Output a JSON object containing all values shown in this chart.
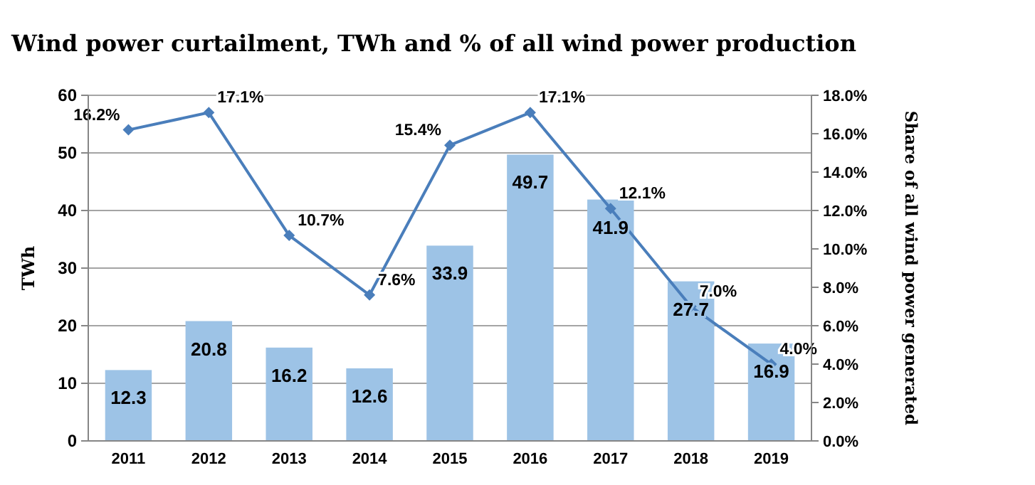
{
  "chart_data": {
    "type": "bar",
    "title": "Wind power curtailment, TWh and % of all wind power production",
    "ylabel": "TWh",
    "y2label": "Share of all wind power generated",
    "categories": [
      "2011",
      "2012",
      "2013",
      "2014",
      "2015",
      "2016",
      "2017",
      "2018",
      "2019"
    ],
    "series": [
      {
        "color": "#9dc3e6",
        "values": [
          12.3,
          20.8,
          16.2,
          12.6,
          33.9,
          49.7,
          41.9,
          27.7,
          16.9
        ]
      },
      {
        "type": "line",
        "axis": "y2",
        "color": "#4a7ebb",
        "marker": "diamond",
        "values": [
          16.2,
          17.1,
          10.7,
          7.6,
          15.4,
          17.1,
          12.1,
          7.0,
          4.0
        ],
        "value_labels": [
          "16.2%",
          "17.1%",
          "10.7%",
          "7.6%",
          "15.4%",
          "17.1%",
          "12.1%",
          "7.0%",
          "4.0%"
        ]
      }
    ],
    "data_labels": true,
    "ylim": [
      0,
      60
    ],
    "yticks": [
      0,
      10,
      20,
      30,
      40,
      50,
      60
    ],
    "y2lim": [
      0,
      18
    ],
    "y2ticks": [
      {
        "value": 0,
        "label": "0.0%"
      },
      {
        "value": 2,
        "label": "2.0%"
      },
      {
        "value": 4,
        "label": "4.0%"
      },
      {
        "value": 6,
        "label": "6.0%"
      },
      {
        "value": 8,
        "label": "8.0%"
      },
      {
        "value": 10,
        "label": "10.0%"
      },
      {
        "value": 12,
        "label": "12.0%"
      },
      {
        "value": 14,
        "label": "14.0%"
      },
      {
        "value": 16,
        "label": "16.0%"
      },
      {
        "value": 18,
        "label": "18.0%"
      }
    ],
    "grid": "y"
  }
}
